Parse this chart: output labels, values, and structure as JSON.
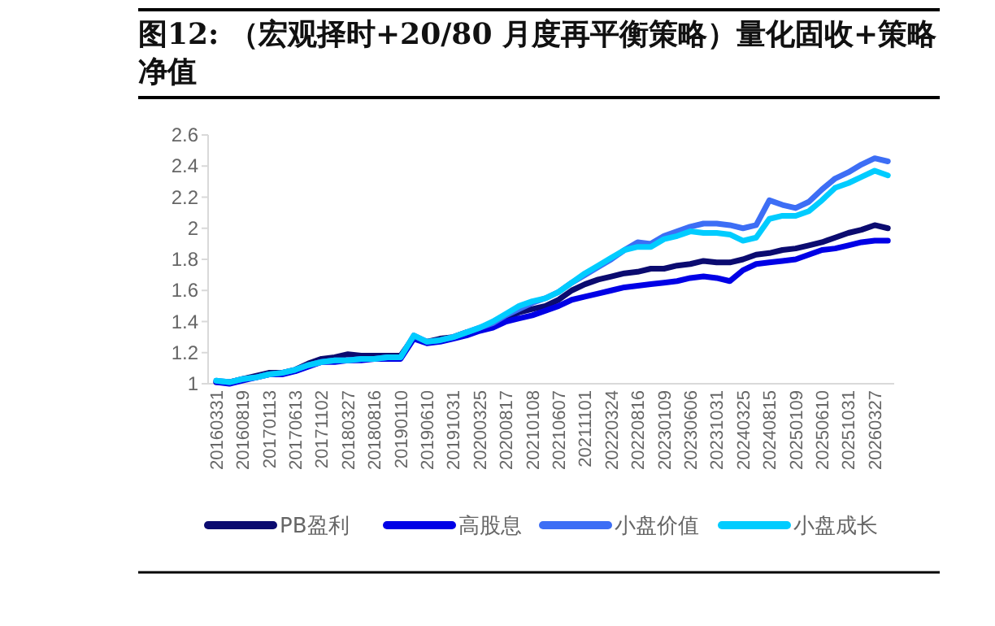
{
  "chart_data": {
    "type": "line",
    "title": "图12: （宏观择时+20/80 月度再平衡策略）量化固收+策略净值",
    "categories": [
      "20160331",
      null,
      "20160819",
      null,
      "20170113",
      null,
      "20170613",
      null,
      "20171102",
      null,
      "20180327",
      null,
      "20180816",
      null,
      "20190110",
      null,
      "20190610",
      null,
      "20191031",
      null,
      "20200325",
      null,
      "20200817",
      null,
      "20210108",
      null,
      "20210607",
      null,
      "20211101",
      null,
      "20220324",
      null,
      "20220816",
      null,
      "20230109",
      null,
      "20230606",
      null,
      "20231031",
      null,
      "20240325",
      null,
      "20240815",
      null,
      "20250109",
      null,
      "20250610",
      null,
      "20251031",
      null,
      "20260327",
      null
    ],
    "series": [
      {
        "name": "PB盈利",
        "color": "#0b0b70",
        "values": [
          1.01,
          1.01,
          1.03,
          1.05,
          1.07,
          1.07,
          1.09,
          1.13,
          1.16,
          1.17,
          1.19,
          1.18,
          1.18,
          1.18,
          1.18,
          1.3,
          1.27,
          1.29,
          1.3,
          1.33,
          1.35,
          1.38,
          1.42,
          1.46,
          1.48,
          1.5,
          1.54,
          1.6,
          1.64,
          1.67,
          1.69,
          1.71,
          1.72,
          1.74,
          1.74,
          1.76,
          1.77,
          1.79,
          1.78,
          1.78,
          1.8,
          1.83,
          1.84,
          1.86,
          1.87,
          1.89,
          1.91,
          1.94,
          1.97,
          1.99,
          2.02,
          2.0
        ]
      },
      {
        "name": "高股息",
        "color": "#0000e6",
        "values": [
          1.01,
          1.0,
          1.02,
          1.04,
          1.06,
          1.06,
          1.08,
          1.11,
          1.14,
          1.14,
          1.15,
          1.15,
          1.16,
          1.16,
          1.16,
          1.29,
          1.26,
          1.27,
          1.29,
          1.31,
          1.34,
          1.36,
          1.4,
          1.42,
          1.44,
          1.47,
          1.5,
          1.54,
          1.56,
          1.58,
          1.6,
          1.62,
          1.63,
          1.64,
          1.65,
          1.66,
          1.68,
          1.69,
          1.68,
          1.66,
          1.73,
          1.77,
          1.78,
          1.79,
          1.8,
          1.83,
          1.86,
          1.87,
          1.89,
          1.91,
          1.92,
          1.92
        ]
      },
      {
        "name": "小盘价值",
        "color": "#3d6ef5",
        "values": [
          1.02,
          1.01,
          1.03,
          1.04,
          1.06,
          1.07,
          1.09,
          1.12,
          1.14,
          1.15,
          1.15,
          1.16,
          1.16,
          1.17,
          1.17,
          1.31,
          1.27,
          1.28,
          1.3,
          1.33,
          1.36,
          1.39,
          1.44,
          1.48,
          1.52,
          1.55,
          1.59,
          1.65,
          1.7,
          1.75,
          1.8,
          1.86,
          1.91,
          1.9,
          1.95,
          1.98,
          2.01,
          2.03,
          2.03,
          2.02,
          2.0,
          2.02,
          2.18,
          2.15,
          2.13,
          2.17,
          2.25,
          2.32,
          2.36,
          2.41,
          2.45,
          2.43
        ]
      },
      {
        "name": "小盘成长",
        "color": "#00ccff",
        "values": [
          1.02,
          1.01,
          1.03,
          1.04,
          1.06,
          1.07,
          1.09,
          1.12,
          1.14,
          1.15,
          1.15,
          1.16,
          1.16,
          1.17,
          1.17,
          1.31,
          1.27,
          1.28,
          1.3,
          1.33,
          1.36,
          1.4,
          1.45,
          1.5,
          1.53,
          1.55,
          1.59,
          1.65,
          1.71,
          1.76,
          1.81,
          1.86,
          1.88,
          1.88,
          1.93,
          1.95,
          1.98,
          1.97,
          1.97,
          1.96,
          1.92,
          1.94,
          2.06,
          2.08,
          2.08,
          2.11,
          2.18,
          2.26,
          2.29,
          2.33,
          2.37,
          2.34
        ]
      }
    ],
    "ylim": [
      1,
      2.6
    ],
    "yticks": [
      1,
      1.2,
      1.4,
      1.6,
      1.8,
      2,
      2.2,
      2.4,
      2.6
    ],
    "grid": false,
    "legend": "bottom",
    "marker": "none",
    "line_style": "solid"
  }
}
